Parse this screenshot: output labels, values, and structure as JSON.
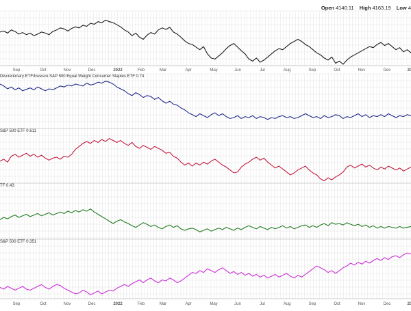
{
  "header": {
    "open_label": "Open",
    "open_value": "4140.11",
    "high_label": "High",
    "high_value": "4163.19",
    "low_label": "Low",
    "low_value": "4"
  },
  "colors": {
    "grid": "#d9d9d9",
    "axis_text": "#555555",
    "panel_border": "#bdbdbd",
    "top_series": "#1a1a1a",
    "panel1": "#1f2a8c",
    "panel2": "#c0183a",
    "panel3": "#1f7a1f",
    "panel4": "#cc2ed6"
  },
  "chart_data": [
    {
      "type": "line",
      "panel": "price",
      "series": [
        {
          "values": [
            0.62,
            0.64,
            0.6,
            0.66,
            0.63,
            0.58,
            0.61,
            0.57,
            0.6,
            0.55,
            0.58,
            0.62,
            0.6,
            0.57,
            0.63,
            0.66,
            0.7,
            0.68,
            0.64,
            0.69,
            0.72,
            0.7,
            0.75,
            0.73,
            0.79,
            0.77,
            0.82,
            0.8,
            0.85,
            0.82,
            0.8,
            0.76,
            0.72,
            0.66,
            0.62,
            0.55,
            0.6,
            0.52,
            0.48,
            0.56,
            0.61,
            0.58,
            0.66,
            0.7,
            0.67,
            0.71,
            0.62,
            0.58,
            0.52,
            0.45,
            0.4,
            0.38,
            0.33,
            0.28,
            0.34,
            0.2,
            0.12,
            0.1,
            0.16,
            0.22,
            0.3,
            0.36,
            0.4,
            0.33,
            0.26,
            0.2,
            0.1,
            0.06,
            0.12,
            0.04,
            0.08,
            0.14,
            0.2,
            0.26,
            0.3,
            0.28,
            0.34,
            0.4,
            0.44,
            0.48,
            0.44,
            0.38,
            0.34,
            0.28,
            0.22,
            0.18,
            0.12,
            0.08,
            0.14,
            0.02,
            0.06,
            0.0,
            0.08,
            0.14,
            0.18,
            0.22,
            0.26,
            0.3,
            0.34,
            0.32,
            0.38,
            0.42,
            0.36,
            0.4,
            0.34,
            0.28,
            0.32,
            0.24,
            0.28,
            0.22
          ]
        }
      ]
    },
    {
      "type": "line",
      "panel": 1,
      "series": [
        {
          "name": "Discretionary ETF/Invesco S&P 500 Equal Weight Consumer Staples ETF 0.74",
          "values": [
            0.9,
            0.86,
            0.8,
            0.84,
            0.78,
            0.82,
            0.76,
            0.79,
            0.82,
            0.78,
            0.84,
            0.8,
            0.76,
            0.8,
            0.78,
            0.82,
            0.86,
            0.84,
            0.88,
            0.86,
            0.9,
            0.88,
            0.86,
            0.92,
            0.88,
            0.9,
            0.94,
            0.92,
            0.96,
            0.94,
            0.9,
            0.84,
            0.8,
            0.76,
            0.7,
            0.66,
            0.72,
            0.68,
            0.62,
            0.66,
            0.64,
            0.58,
            0.62,
            0.55,
            0.5,
            0.54,
            0.48,
            0.46,
            0.4,
            0.36,
            0.3,
            0.26,
            0.22,
            0.28,
            0.24,
            0.2,
            0.26,
            0.3,
            0.24,
            0.28,
            0.22,
            0.18,
            0.2,
            0.24,
            0.18,
            0.22,
            0.2,
            0.24,
            0.18,
            0.22,
            0.2,
            0.16,
            0.2,
            0.18,
            0.22,
            0.24,
            0.2,
            0.22,
            0.18,
            0.2,
            0.24,
            0.28,
            0.24,
            0.2,
            0.22,
            0.18,
            0.24,
            0.2,
            0.22,
            0.26,
            0.24,
            0.18,
            0.22,
            0.2,
            0.24,
            0.28,
            0.22,
            0.26,
            0.2,
            0.24,
            0.22,
            0.26,
            0.22,
            0.28,
            0.24,
            0.2,
            0.24,
            0.22,
            0.26,
            0.24
          ]
        }
      ]
    },
    {
      "type": "line",
      "panel": 2,
      "series": [
        {
          "name": "S&P 500 ETF 0.611",
          "values": [
            0.42,
            0.46,
            0.4,
            0.52,
            0.56,
            0.5,
            0.54,
            0.58,
            0.52,
            0.56,
            0.5,
            0.54,
            0.48,
            0.44,
            0.48,
            0.5,
            0.46,
            0.52,
            0.5,
            0.56,
            0.66,
            0.72,
            0.78,
            0.82,
            0.78,
            0.84,
            0.8,
            0.86,
            0.82,
            0.88,
            0.84,
            0.8,
            0.84,
            0.78,
            0.74,
            0.8,
            0.72,
            0.68,
            0.74,
            0.7,
            0.66,
            0.72,
            0.68,
            0.64,
            0.58,
            0.6,
            0.52,
            0.48,
            0.4,
            0.34,
            0.38,
            0.32,
            0.38,
            0.34,
            0.4,
            0.36,
            0.42,
            0.46,
            0.4,
            0.34,
            0.3,
            0.24,
            0.18,
            0.2,
            0.3,
            0.36,
            0.4,
            0.46,
            0.5,
            0.44,
            0.48,
            0.4,
            0.34,
            0.28,
            0.32,
            0.26,
            0.2,
            0.14,
            0.18,
            0.24,
            0.28,
            0.32,
            0.24,
            0.18,
            0.14,
            0.06,
            0.02,
            0.08,
            0.04,
            0.1,
            0.14,
            0.2,
            0.3,
            0.34,
            0.28,
            0.32,
            0.36,
            0.3,
            0.34,
            0.28,
            0.24,
            0.3,
            0.26,
            0.32,
            0.28,
            0.24,
            0.28,
            0.22,
            0.26,
            0.3
          ]
        }
      ]
    },
    {
      "type": "line",
      "panel": 3,
      "series": [
        {
          "name": "TF 0.43",
          "values": [
            0.44,
            0.5,
            0.46,
            0.52,
            0.56,
            0.5,
            0.54,
            0.58,
            0.52,
            0.56,
            0.6,
            0.54,
            0.58,
            0.62,
            0.56,
            0.6,
            0.64,
            0.6,
            0.66,
            0.62,
            0.68,
            0.64,
            0.7,
            0.66,
            0.72,
            0.64,
            0.58,
            0.52,
            0.46,
            0.4,
            0.34,
            0.4,
            0.44,
            0.38,
            0.34,
            0.28,
            0.24,
            0.3,
            0.36,
            0.32,
            0.26,
            0.3,
            0.24,
            0.2,
            0.26,
            0.3,
            0.24,
            0.28,
            0.2,
            0.16,
            0.2,
            0.22,
            0.18,
            0.12,
            0.16,
            0.2,
            0.14,
            0.18,
            0.22,
            0.18,
            0.24,
            0.2,
            0.16,
            0.22,
            0.18,
            0.24,
            0.28,
            0.24,
            0.2,
            0.26,
            0.22,
            0.18,
            0.24,
            0.2,
            0.24,
            0.28,
            0.22,
            0.26,
            0.2,
            0.24,
            0.28,
            0.3,
            0.24,
            0.28,
            0.24,
            0.3,
            0.34,
            0.28,
            0.36,
            0.32,
            0.34,
            0.3,
            0.36,
            0.32,
            0.28,
            0.32,
            0.26,
            0.3,
            0.24,
            0.28,
            0.22,
            0.26,
            0.22,
            0.26,
            0.24,
            0.22,
            0.26,
            0.22,
            0.24,
            0.26
          ]
        }
      ]
    },
    {
      "type": "line",
      "panel": 4,
      "series": [
        {
          "name": "S&P 500 ETF 0.351",
          "values": [
            0.2,
            0.16,
            0.22,
            0.18,
            0.14,
            0.18,
            0.22,
            0.16,
            0.14,
            0.18,
            0.22,
            0.26,
            0.2,
            0.16,
            0.22,
            0.26,
            0.24,
            0.18,
            0.14,
            0.1,
            0.06,
            0.08,
            0.14,
            0.1,
            0.04,
            0.08,
            0.12,
            0.06,
            0.1,
            0.14,
            0.12,
            0.18,
            0.22,
            0.26,
            0.22,
            0.28,
            0.32,
            0.36,
            0.3,
            0.36,
            0.4,
            0.34,
            0.3,
            0.36,
            0.34,
            0.4,
            0.36,
            0.3,
            0.34,
            0.4,
            0.46,
            0.52,
            0.5,
            0.56,
            0.52,
            0.6,
            0.56,
            0.52,
            0.58,
            0.62,
            0.56,
            0.5,
            0.54,
            0.48,
            0.52,
            0.46,
            0.5,
            0.44,
            0.48,
            0.42,
            0.46,
            0.4,
            0.44,
            0.48,
            0.42,
            0.46,
            0.5,
            0.44,
            0.4,
            0.46,
            0.42,
            0.48,
            0.54,
            0.6,
            0.66,
            0.62,
            0.58,
            0.52,
            0.56,
            0.5,
            0.56,
            0.62,
            0.66,
            0.72,
            0.68,
            0.74,
            0.7,
            0.76,
            0.72,
            0.78,
            0.82,
            0.78,
            0.84,
            0.8,
            0.86,
            0.88,
            0.84,
            0.9,
            0.94,
            0.92
          ]
        }
      ]
    }
  ],
  "x_axis": {
    "ticks": [
      "Sep",
      "Oct",
      "Nov",
      "Dec",
      "2022",
      "Feb",
      "Mar",
      "Apr",
      "May",
      "Jun",
      "Jul",
      "Aug",
      "Sep",
      "Oct",
      "Nov",
      "Dec",
      "20"
    ],
    "bold_ticks": [
      "2022",
      "20"
    ]
  }
}
